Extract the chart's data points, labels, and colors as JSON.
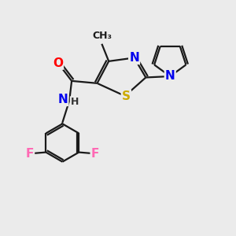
{
  "bg_color": "#ebebeb",
  "bond_color": "#1a1a1a",
  "line_width": 1.6,
  "atom_colors": {
    "O": "#ff0000",
    "N": "#0000ee",
    "S": "#ccaa00",
    "F": "#ff69b4",
    "H_color": "#333333"
  },
  "fs": 11
}
